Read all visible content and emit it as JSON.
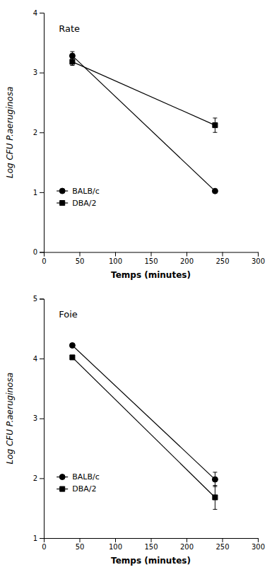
{
  "chart_data": [
    {
      "type": "line",
      "title": "Rate",
      "xlabel": "Temps (minutes)",
      "ylabel": "Log CFU P.aeruginosa",
      "xlim": [
        0,
        300
      ],
      "ylim": [
        0,
        4
      ],
      "xticks": [
        0,
        50,
        100,
        150,
        200,
        250,
        300
      ],
      "yticks": [
        0,
        1,
        2,
        3,
        4
      ],
      "grid": false,
      "legend": "lower left",
      "x": [
        40,
        240
      ],
      "series": [
        {
          "name": "BALB/c",
          "color": "black",
          "marker": "circle",
          "values": [
            3.28,
            1.02
          ],
          "errors": [
            0.07,
            0.0
          ]
        },
        {
          "name": "DBA/2",
          "color": "black",
          "marker": "square",
          "values": [
            3.18,
            2.12
          ],
          "errors": [
            0.06,
            0.12
          ]
        }
      ]
    },
    {
      "type": "line",
      "title": "Foie",
      "xlabel": "Temps (minutes)",
      "ylabel": "Log CFU P.aeruginosa",
      "xlim": [
        0,
        300
      ],
      "ylim": [
        1,
        5
      ],
      "xticks": [
        0,
        50,
        100,
        150,
        200,
        250,
        300
      ],
      "yticks": [
        1,
        2,
        3,
        4,
        5
      ],
      "grid": false,
      "legend": "lower left",
      "x": [
        40,
        240
      ],
      "series": [
        {
          "name": "BALB/c",
          "color": "black",
          "marker": "circle",
          "values": [
            4.22,
            1.98
          ],
          "errors": [
            0.0,
            0.12
          ]
        },
        {
          "name": "DBA/2",
          "color": "black",
          "marker": "square",
          "values": [
            4.02,
            1.68
          ],
          "errors": [
            0.0,
            0.2
          ]
        }
      ]
    }
  ]
}
